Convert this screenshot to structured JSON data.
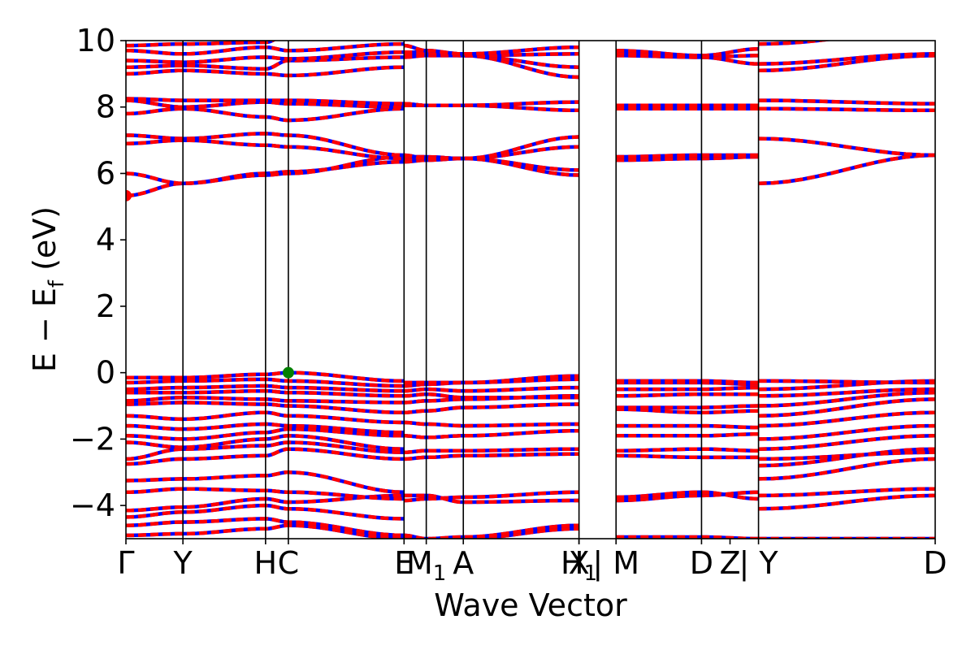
{
  "chart_data": {
    "type": "line",
    "xlabel": "Wave Vector",
    "ylabel": "E − E_f (eV)",
    "ylabel_main": "E − E",
    "ylabel_sub": "f",
    "ylabel_tail": " (eV)",
    "ylim": [
      -5,
      10
    ],
    "xlim": [
      0,
      14.2
    ],
    "yticks": [
      -4,
      -2,
      0,
      2,
      4,
      6,
      8,
      10
    ],
    "ytick_labels": [
      "−4",
      "−2",
      "0",
      "2",
      "4",
      "6",
      "8",
      "10"
    ],
    "grid": false,
    "band_colors": [
      "#ff0000",
      "#0000ff"
    ],
    "kpoints": [
      {
        "label": "Γ",
        "x": 0.0
      },
      {
        "label": "Y",
        "x": 1.0
      },
      {
        "label": "H",
        "x": 2.45
      },
      {
        "label": "C",
        "x": 2.85
      },
      {
        "label": "E",
        "x": 4.88
      },
      {
        "label": "M",
        "sub": "1",
        "x": 5.27
      },
      {
        "label": "A",
        "x": 5.92
      },
      {
        "label": "X",
        "x": 7.95
      },
      {
        "label": "H",
        "sub": "1",
        "x": 7.95
      },
      {
        "label": "| M",
        "x": 8.6
      },
      {
        "label": "D",
        "x": 10.1
      },
      {
        "label": "Z",
        "x": 10.6
      },
      {
        "label": "| Y",
        "x": 11.1
      },
      {
        "label": "D",
        "x": 14.2
      }
    ],
    "vlines": [
      1.0,
      2.45,
      2.85,
      4.88,
      5.27,
      5.92,
      7.95,
      8.6,
      10.1,
      11.1
    ],
    "markers": [
      {
        "name": "cbm",
        "x": 0.0,
        "y": 5.33,
        "color": "#ff0000"
      },
      {
        "name": "vbm",
        "x": 2.85,
        "y": 0.0,
        "color": "#008000"
      }
    ],
    "segments": [
      {
        "x": [
          0.0,
          1.0,
          2.45,
          2.85,
          4.88
        ],
        "bands": [
          [
            -4.9,
            -4.85,
            -4.7,
            -4.6,
            -5.0
          ],
          [
            -4.6,
            -4.5,
            -4.4,
            -4.5,
            -4.9
          ],
          [
            -4.35,
            -4.2,
            -4.0,
            -4.1,
            -4.4
          ],
          [
            -4.15,
            -4.05,
            -3.8,
            -3.9,
            -3.7
          ],
          [
            -3.6,
            -3.5,
            -3.55,
            -3.6,
            -3.8
          ],
          [
            -3.25,
            -3.2,
            -3.1,
            -3.0,
            -3.6
          ],
          [
            -2.75,
            -2.6,
            -2.5,
            -2.3,
            -2.6
          ],
          [
            -2.6,
            -2.3,
            -2.2,
            -2.1,
            -2.4
          ],
          [
            -2.1,
            -2.25,
            -2.0,
            -1.9,
            -2.3
          ],
          [
            -1.9,
            -2.0,
            -1.8,
            -1.7,
            -1.9
          ],
          [
            -1.6,
            -1.7,
            -1.55,
            -1.6,
            -1.8
          ],
          [
            -1.3,
            -1.4,
            -1.2,
            -1.3,
            -1.5
          ],
          [
            -0.95,
            -0.9,
            -0.95,
            -1.0,
            -1.2
          ],
          [
            -0.85,
            -0.75,
            -0.8,
            -0.85,
            -0.9
          ],
          [
            -0.6,
            -0.6,
            -0.55,
            -0.6,
            -0.7
          ],
          [
            -0.5,
            -0.45,
            -0.4,
            -0.45,
            -0.55
          ],
          [
            -0.3,
            -0.25,
            -0.2,
            -0.25,
            -0.4
          ],
          [
            -0.15,
            -0.15,
            -0.05,
            0.0,
            -0.25
          ],
          [
            5.33,
            5.7,
            6.0,
            6.05,
            6.35
          ],
          [
            6.0,
            5.7,
            5.95,
            6.0,
            6.5
          ],
          [
            6.9,
            7.0,
            6.85,
            6.8,
            6.45
          ],
          [
            7.15,
            7.05,
            7.2,
            7.15,
            6.55
          ],
          [
            7.8,
            7.95,
            7.7,
            7.6,
            7.95
          ],
          [
            8.2,
            8.0,
            8.15,
            8.1,
            8.0
          ],
          [
            8.25,
            8.2,
            8.2,
            8.2,
            8.1
          ],
          [
            9.0,
            9.1,
            9.0,
            8.95,
            9.2
          ],
          [
            9.2,
            9.25,
            9.15,
            9.4,
            9.5
          ],
          [
            9.4,
            9.35,
            9.5,
            9.45,
            9.65
          ],
          [
            9.7,
            9.6,
            9.8,
            9.7,
            9.9
          ],
          [
            9.85,
            9.9,
            9.95,
            10.2,
            10.4
          ]
        ]
      },
      {
        "x": [
          4.88,
          5.27,
          5.92,
          7.95
        ],
        "bands": [
          [
            -5.0,
            -5.1,
            -5.0,
            -4.7
          ],
          [
            -4.9,
            -5.0,
            -4.95,
            -4.6
          ],
          [
            -3.85,
            -3.8,
            -3.75,
            -3.6
          ],
          [
            -3.7,
            -3.7,
            -3.9,
            -3.85
          ],
          [
            -2.6,
            -2.55,
            -2.5,
            -2.45
          ],
          [
            -2.4,
            -2.35,
            -2.35,
            -2.3
          ],
          [
            -1.9,
            -1.95,
            -1.9,
            -1.75
          ],
          [
            -1.5,
            -1.55,
            -1.6,
            -1.55
          ],
          [
            -1.2,
            -1.15,
            -1.05,
            -0.95
          ],
          [
            -0.9,
            -0.85,
            -0.8,
            -0.7
          ],
          [
            -0.7,
            -0.65,
            -0.75,
            -0.75
          ],
          [
            -0.55,
            -0.5,
            -0.55,
            -0.45
          ],
          [
            -0.4,
            -0.35,
            -0.3,
            -0.2
          ],
          [
            -0.3,
            -0.3,
            -0.3,
            -0.1
          ],
          [
            6.35,
            6.4,
            6.45,
            5.95
          ],
          [
            6.45,
            6.45,
            6.45,
            6.1
          ],
          [
            6.5,
            6.5,
            6.45,
            6.8
          ],
          [
            6.55,
            6.45,
            6.45,
            7.1
          ],
          [
            8.05,
            8.05,
            8.05,
            7.9
          ],
          [
            8.1,
            8.05,
            8.05,
            8.15
          ],
          [
            9.5,
            9.55,
            9.55,
            8.9
          ],
          [
            9.6,
            9.6,
            9.55,
            9.2
          ],
          [
            9.65,
            9.65,
            9.55,
            9.6
          ],
          [
            9.85,
            9.7,
            9.6,
            9.8
          ]
        ]
      },
      {
        "x": [
          8.6,
          10.1,
          11.1
        ],
        "bands": [
          [
            -4.95,
            -4.95,
            -5.0
          ],
          [
            -3.85,
            -3.7,
            -3.6
          ],
          [
            -3.75,
            -3.6,
            -3.8
          ],
          [
            -2.5,
            -2.55,
            -2.55
          ],
          [
            -2.35,
            -2.3,
            -2.35
          ],
          [
            -1.9,
            -1.9,
            -1.85
          ],
          [
            -1.6,
            -1.6,
            -1.65
          ],
          [
            -1.1,
            -1.2,
            -1.15
          ],
          [
            -1.05,
            -1.05,
            -1.0
          ],
          [
            -0.7,
            -0.65,
            -0.65
          ],
          [
            -0.5,
            -0.5,
            -0.45
          ],
          [
            -0.3,
            -0.3,
            -0.35
          ],
          [
            -0.25,
            -0.25,
            -0.3
          ],
          [
            6.4,
            6.45,
            6.5
          ],
          [
            6.5,
            6.55,
            6.55
          ],
          [
            7.95,
            7.95,
            7.95
          ],
          [
            8.05,
            8.05,
            8.05
          ],
          [
            9.55,
            9.5,
            9.55
          ],
          [
            9.7,
            9.55,
            9.75
          ],
          [
            9.6,
            9.5,
            9.3
          ]
        ]
      },
      {
        "x": [
          11.1,
          14.2
        ],
        "bands": [
          [
            -5.0,
            -5.0
          ],
          [
            -4.1,
            -3.7
          ],
          [
            -3.7,
            -3.5
          ],
          [
            -3.2,
            -2.6
          ],
          [
            -2.8,
            -2.3
          ],
          [
            -2.6,
            -2.4
          ],
          [
            -2.3,
            -1.9
          ],
          [
            -2.0,
            -1.6
          ],
          [
            -1.6,
            -1.2
          ],
          [
            -1.3,
            -0.8
          ],
          [
            -1.0,
            -0.6
          ],
          [
            -0.7,
            -0.5
          ],
          [
            -0.5,
            -0.25
          ],
          [
            -0.25,
            -0.3
          ],
          [
            5.7,
            6.55
          ],
          [
            7.05,
            6.55
          ],
          [
            7.95,
            7.9
          ],
          [
            8.2,
            8.1
          ],
          [
            9.1,
            9.55
          ],
          [
            9.3,
            9.6
          ],
          [
            9.9,
            10.3
          ]
        ]
      }
    ]
  }
}
